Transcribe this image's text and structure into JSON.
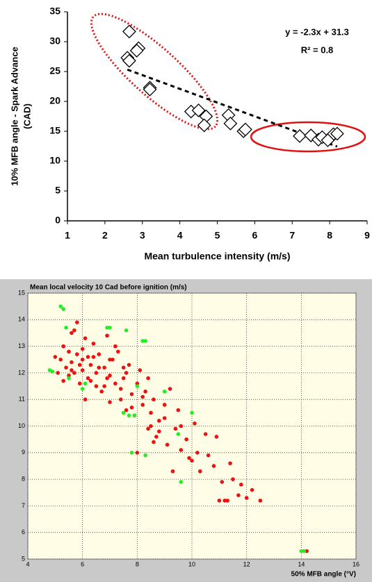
{
  "chart_data": [
    {
      "type": "scatter",
      "xlabel": "Mean turbulence intensity (m/s)",
      "ylabel": [
        "10% MFB angle - Spark Advance",
        "(CAD)"
      ],
      "annotations": [
        "y = -2.3x + 31.3",
        "R² = 0.8"
      ],
      "trendline": {
        "slope": -2.3,
        "intercept": 31.3,
        "color": "#000000"
      },
      "xlim": [
        1,
        9
      ],
      "xticks": [
        1,
        2,
        3,
        4,
        5,
        6,
        7,
        8,
        9
      ],
      "ylim": [
        0,
        35
      ],
      "yticks": [
        0,
        5,
        10,
        15,
        20,
        25,
        30,
        35
      ],
      "grid": false,
      "marker": "diamond",
      "series": [
        {
          "color": "#000000",
          "x": [
            2.65,
            2.6,
            2.65,
            2.9,
            2.85,
            3.2,
            3.2,
            4.3,
            4.5,
            4.7,
            4.65,
            5.3,
            5.35,
            5.7,
            5.75,
            7.2,
            7.5,
            7.7,
            7.8,
            8.0,
            8.1,
            8.2,
            7.95
          ],
          "values": [
            31.7,
            27.3,
            26.8,
            28.9,
            28.5,
            22.3,
            22.0,
            18.3,
            18.5,
            17.5,
            16.0,
            17.7,
            16.3,
            15.0,
            15.3,
            14.2,
            14.3,
            13.6,
            14.0,
            13.8,
            14.5,
            14.6,
            13.5
          ]
        }
      ]
    },
    {
      "type": "scatter",
      "title": "Mean local velocity 10 Cad before ignition (m/s)",
      "xlabel": "50% MFB angle (°V)",
      "xlim": [
        4,
        16
      ],
      "xticks": [
        4,
        6,
        8,
        10,
        12,
        14,
        16
      ],
      "ylim": [
        5,
        15
      ],
      "yticks": [
        5,
        6,
        7,
        8,
        9,
        10,
        11,
        12,
        13,
        14,
        15
      ],
      "grid": true,
      "marker": "circle",
      "series": [
        {
          "color": "#ee1111",
          "x": [
            5.2,
            5.3,
            5.4,
            5.5,
            5.5,
            5.6,
            5.6,
            5.7,
            5.8,
            5.8,
            5.9,
            6.0,
            6.0,
            6.1,
            6.2,
            6.2,
            6.3,
            6.4,
            6.5,
            6.5,
            6.6,
            6.7,
            6.8,
            6.9,
            7.0,
            7.0,
            7.1,
            7.2,
            7.3,
            7.4,
            7.5,
            7.6,
            7.7,
            7.8,
            7.9,
            8.0,
            8.1,
            8.2,
            8.3,
            8.4,
            8.5,
            8.6,
            8.7,
            8.8,
            9.0,
            9.1,
            9.2,
            9.4,
            9.5,
            9.6,
            9.8,
            10.0,
            10.1,
            10.3,
            10.5,
            10.6,
            10.8,
            11.0,
            11.1,
            11.2,
            11.4,
            11.5,
            11.7,
            11.8,
            12.0,
            12.2,
            12.5,
            5.0,
            5.1,
            5.3,
            5.7,
            6.1,
            6.4,
            6.8,
            7.2,
            7.6,
            8.0,
            8.4,
            8.8,
            9.3,
            5.9,
            6.3,
            6.6,
            7.0,
            7.4,
            7.8,
            8.2,
            8.6,
            9.0,
            9.6,
            10.2,
            10.9,
            11.3,
            14.2,
            5.6,
            6.0,
            6.9,
            7.5,
            8.5,
            9.9
          ],
          "values": [
            12.5,
            13.0,
            12.2,
            12.8,
            11.9,
            13.5,
            12.4,
            12.0,
            13.9,
            12.7,
            11.6,
            12.9,
            12.1,
            13.3,
            11.8,
            12.6,
            12.3,
            13.1,
            11.5,
            12.0,
            12.7,
            11.3,
            12.2,
            13.4,
            11.9,
            10.9,
            12.5,
            11.6,
            12.8,
            11.0,
            11.8,
            10.6,
            12.3,
            11.2,
            10.4,
            11.6,
            12.1,
            10.8,
            11.3,
            9.9,
            10.5,
            11.0,
            9.6,
            10.2,
            10.8,
            9.3,
            11.4,
            9.9,
            10.6,
            9.1,
            9.5,
            8.7,
            10.1,
            8.3,
            9.7,
            8.9,
            8.5,
            7.2,
            7.9,
            7.2,
            8.6,
            8.0,
            7.4,
            7.8,
            7.3,
            7.6,
            7.2,
            12.6,
            12.0,
            11.7,
            13.6,
            11.0,
            12.6,
            11.5,
            13.0,
            12.0,
            9.0,
            11.8,
            9.8,
            8.3,
            12.3,
            11.7,
            12.2,
            12.5,
            11.4,
            10.7,
            11.1,
            9.4,
            10.3,
            10.0,
            9.0,
            9.6,
            7.2,
            5.3,
            12.1,
            12.5,
            11.8,
            12.2,
            10.0,
            8.8
          ]
        },
        {
          "color": "#22ee22",
          "x": [
            5.2,
            5.3,
            5.4,
            4.8,
            4.9,
            5.5,
            6.0,
            6.1,
            6.9,
            7.0,
            7.6,
            8.2,
            8.3,
            7.5,
            7.7,
            7.9,
            8.0,
            7.8,
            8.3,
            9.0,
            9.6,
            9.5,
            10.0,
            14.0,
            14.1
          ],
          "values": [
            14.5,
            14.4,
            13.7,
            12.1,
            12.05,
            11.8,
            11.4,
            11.6,
            13.7,
            13.7,
            13.6,
            13.2,
            13.2,
            10.5,
            10.4,
            10.4,
            11.5,
            9.0,
            8.9,
            11.3,
            7.9,
            9.7,
            10.5,
            5.3,
            5.3
          ]
        }
      ]
    }
  ]
}
